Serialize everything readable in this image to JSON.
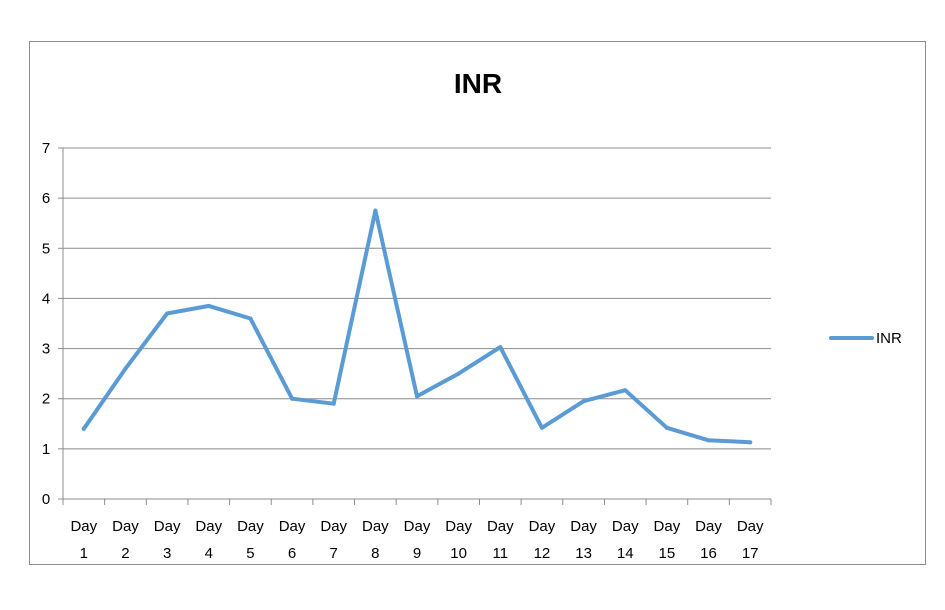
{
  "chart_data": {
    "type": "line",
    "title": "INR",
    "categories": [
      [
        "Day",
        "1"
      ],
      [
        "Day",
        "2"
      ],
      [
        "Day",
        "3"
      ],
      [
        "Day",
        "4"
      ],
      [
        "Day",
        "5"
      ],
      [
        "Day",
        "6"
      ],
      [
        "Day",
        "7"
      ],
      [
        "Day",
        "8"
      ],
      [
        "Day",
        "9"
      ],
      [
        "Day",
        "10"
      ],
      [
        "Day",
        "11"
      ],
      [
        "Day",
        "12"
      ],
      [
        "Day",
        "13"
      ],
      [
        "Day",
        "14"
      ],
      [
        "Day",
        "15"
      ],
      [
        "Day",
        "16"
      ],
      [
        "Day",
        "17"
      ]
    ],
    "series": [
      {
        "name": "INR",
        "color": "#5b9bd5",
        "values": [
          1.4,
          2.6,
          3.7,
          3.85,
          3.6,
          2.0,
          1.9,
          5.75,
          2.05,
          2.5,
          3.03,
          1.42,
          1.95,
          2.17,
          1.42,
          1.17,
          1.13
        ]
      }
    ],
    "ylim": [
      0,
      7
    ],
    "yticks": [
      0,
      1,
      2,
      3,
      4,
      5,
      6,
      7
    ],
    "grid": true,
    "legend_position": "right"
  }
}
